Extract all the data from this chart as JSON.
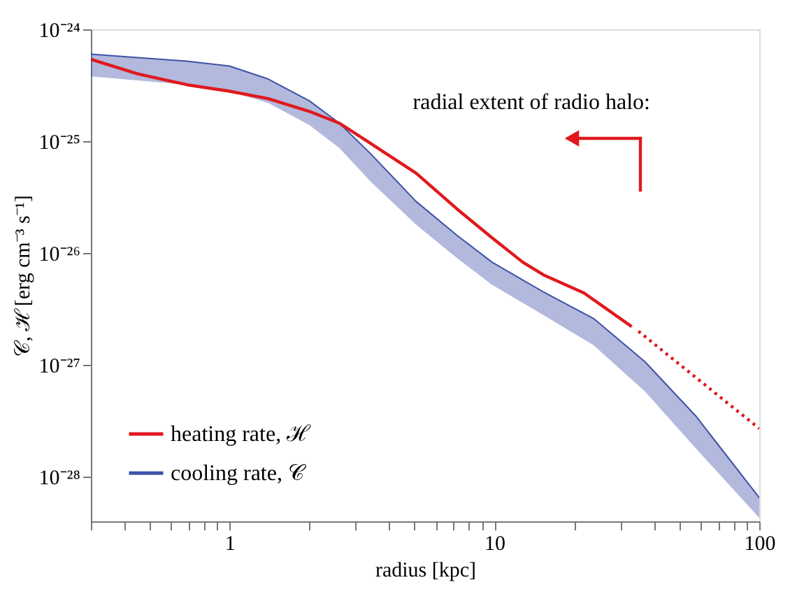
{
  "chart_data": {
    "type": "line",
    "xlabel": "radius [kpc]",
    "ylabel": "𝒞, ℋ [erg cm⁻³ s⁻¹]",
    "log": "xy",
    "grid": false,
    "legend": "bottom left",
    "xlim": [
      0.3,
      100
    ],
    "ylim": [
      4e-29,
      1e-24
    ],
    "xticks": [
      {
        "value": 0.3,
        "label": null
      },
      {
        "value": 0.4,
        "label": null
      },
      {
        "value": 0.5,
        "label": null
      },
      {
        "value": 0.6,
        "label": null
      },
      {
        "value": 0.7,
        "label": null
      },
      {
        "value": 0.8,
        "label": null
      },
      {
        "value": 0.9,
        "label": null
      },
      1,
      {
        "value": 2,
        "label": null
      },
      {
        "value": 3,
        "label": null
      },
      {
        "value": 4,
        "label": null
      },
      {
        "value": 5,
        "label": null
      },
      {
        "value": 6,
        "label": null
      },
      {
        "value": 7,
        "label": null
      },
      {
        "value": 8,
        "label": null
      },
      {
        "value": 9,
        "label": null
      },
      10,
      {
        "value": 20,
        "label": null
      },
      {
        "value": 30,
        "label": null
      },
      {
        "value": 40,
        "label": null
      },
      {
        "value": 50,
        "label": null
      },
      {
        "value": 60,
        "label": null
      },
      {
        "value": 70,
        "label": null
      },
      {
        "value": 80,
        "label": null
      },
      {
        "value": 90,
        "label": null
      },
      100
    ],
    "yticks": [
      {
        "value": 1e-24,
        "label": "10⁻²⁴"
      },
      {
        "value": 1e-25,
        "label": "10⁻²⁵"
      },
      {
        "value": 1e-26,
        "label": "10⁻²⁶"
      },
      {
        "value": 1e-27,
        "label": "10⁻²⁷"
      },
      {
        "value": 1e-28,
        "label": "10⁻²⁸"
      }
    ],
    "annotations": [
      "radial extent of radio halo:"
    ],
    "series": [
      {
        "name": "heating rate, ℋ",
        "color": "#e0191e",
        "line_style": "solid",
        "x": [
          0.3,
          0.45,
          0.69,
          1,
          1.4,
          2,
          2.6,
          3.4,
          5.06,
          7.2,
          9.8,
          12.8,
          15.3,
          21.8,
          33
        ],
        "values": [
          5.4e-25,
          4e-25,
          3.2e-25,
          2.8e-25,
          2.4e-25,
          1.85e-25,
          1.45e-25,
          9.6e-26,
          5.2e-26,
          2.5e-26,
          1.37e-26,
          8.3e-27,
          6.4e-27,
          4.4e-27,
          2.2e-27
        ]
      },
      {
        "type": "line",
        "color": "#e0191e",
        "line_style": "dotted",
        "x": [
          35,
          100
        ],
        "values": [
          2e-27,
          2.7e-28
        ]
      },
      {
        "name": "cooling rate, 𝒞",
        "type": "line",
        "line_style": "solid",
        "color": "#3f51a8",
        "x": [
          0.3,
          0.69,
          1,
          1.4,
          2,
          2.6,
          3.4,
          5.06,
          7.2,
          9.8,
          15.3,
          23.7,
          37,
          57.6,
          100
        ],
        "values": [
          6e-25,
          5.2e-25,
          4.7e-25,
          3.6e-25,
          2.3e-25,
          1.45e-25,
          7.8e-26,
          2.9e-26,
          1.45e-26,
          8.3e-27,
          4.5e-27,
          2.6e-27,
          1.07e-27,
          3.5e-28,
          6.5e-29
        ],
        "upper": [
          6e-25,
          5.2e-25,
          4.7e-25,
          3.6e-25,
          2.3e-25,
          1.45e-25,
          7.8e-26,
          2.9e-26,
          1.45e-26,
          8.3e-27,
          4.5e-27,
          2.6e-27,
          1.07e-27,
          3.5e-28,
          6.5e-29
        ],
        "lower": [
          3.8e-25,
          3.2e-25,
          2.8e-25,
          2.2e-25,
          1.4e-25,
          8.7e-26,
          4.4e-26,
          1.8e-26,
          9.1e-27,
          5.2e-27,
          2.8e-27,
          1.5e-27,
          5.8e-28,
          1.8e-28,
          4.3e-29
        ]
      }
    ]
  }
}
